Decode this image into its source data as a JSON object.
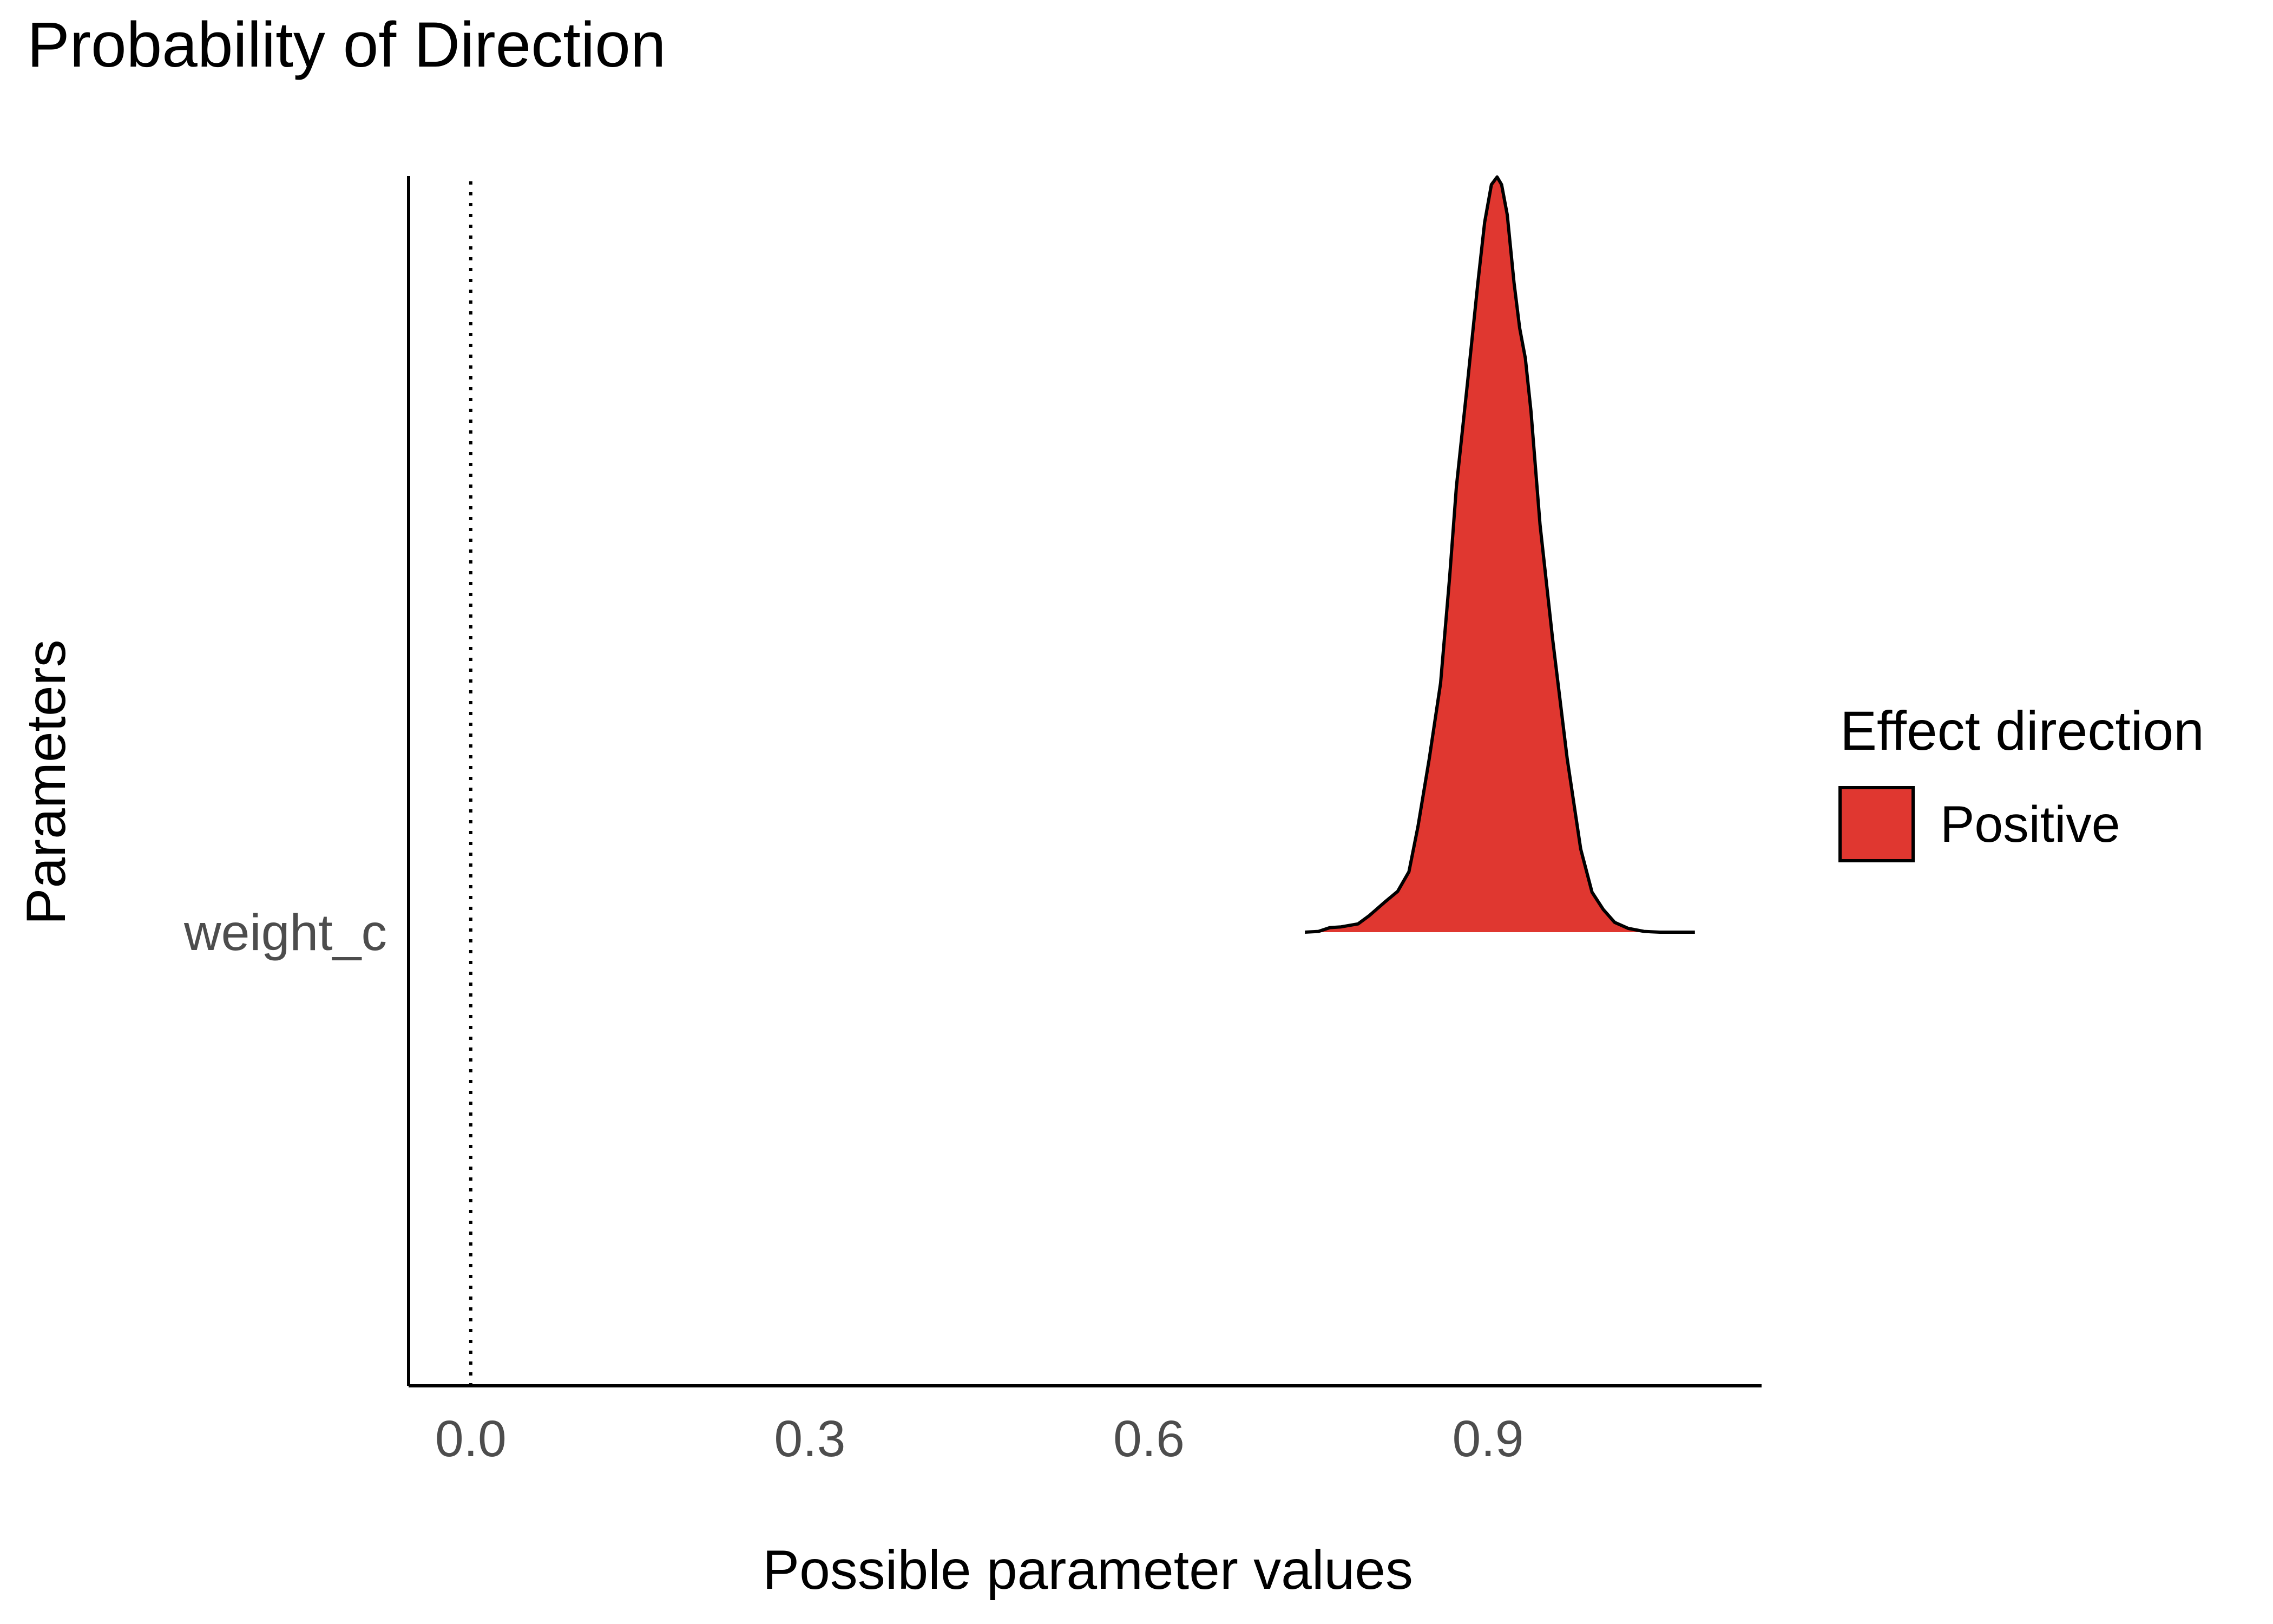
{
  "chart_data": {
    "type": "area",
    "title": "Probability of Direction",
    "xlabel": "Possible parameter values",
    "ylabel": "Parameters",
    "xlim": [
      -0.055,
      1.142
    ],
    "x_ticks": [
      0.0,
      0.3,
      0.6,
      0.9
    ],
    "x_tick_labels": [
      "0.0",
      "0.3",
      "0.6",
      "0.9"
    ],
    "categories": [
      "weight_c"
    ],
    "reference_line": {
      "x": 0.0,
      "style": "dotted"
    },
    "grid": false,
    "legend": {
      "title": "Effect direction",
      "position": "right",
      "entries": [
        {
          "name": "Positive",
          "color": "#E03730"
        }
      ]
    },
    "series": [
      {
        "name": "Positive",
        "category": "weight_c",
        "color": "#E03730",
        "density_points": [
          [
            0.738,
            0.0
          ],
          [
            0.75,
            0.001
          ],
          [
            0.76,
            0.006
          ],
          [
            0.77,
            0.007
          ],
          [
            0.785,
            0.011
          ],
          [
            0.795,
            0.022
          ],
          [
            0.808,
            0.039
          ],
          [
            0.82,
            0.054
          ],
          [
            0.83,
            0.08
          ],
          [
            0.838,
            0.14
          ],
          [
            0.848,
            0.23
          ],
          [
            0.858,
            0.33
          ],
          [
            0.866,
            0.47
          ],
          [
            0.872,
            0.59
          ],
          [
            0.882,
            0.73
          ],
          [
            0.891,
            0.86
          ],
          [
            0.897,
            0.94
          ],
          [
            0.903,
            0.99
          ],
          [
            0.908,
            1.0
          ],
          [
            0.912,
            0.99
          ],
          [
            0.917,
            0.95
          ],
          [
            0.923,
            0.86
          ],
          [
            0.928,
            0.8
          ],
          [
            0.933,
            0.76
          ],
          [
            0.938,
            0.69
          ],
          [
            0.946,
            0.54
          ],
          [
            0.957,
            0.39
          ],
          [
            0.97,
            0.23
          ],
          [
            0.982,
            0.11
          ],
          [
            0.992,
            0.053
          ],
          [
            1.002,
            0.03
          ],
          [
            1.012,
            0.013
          ],
          [
            1.024,
            0.005
          ],
          [
            1.038,
            0.001
          ],
          [
            1.052,
            0.0
          ],
          [
            1.083,
            0.0
          ]
        ]
      }
    ]
  }
}
